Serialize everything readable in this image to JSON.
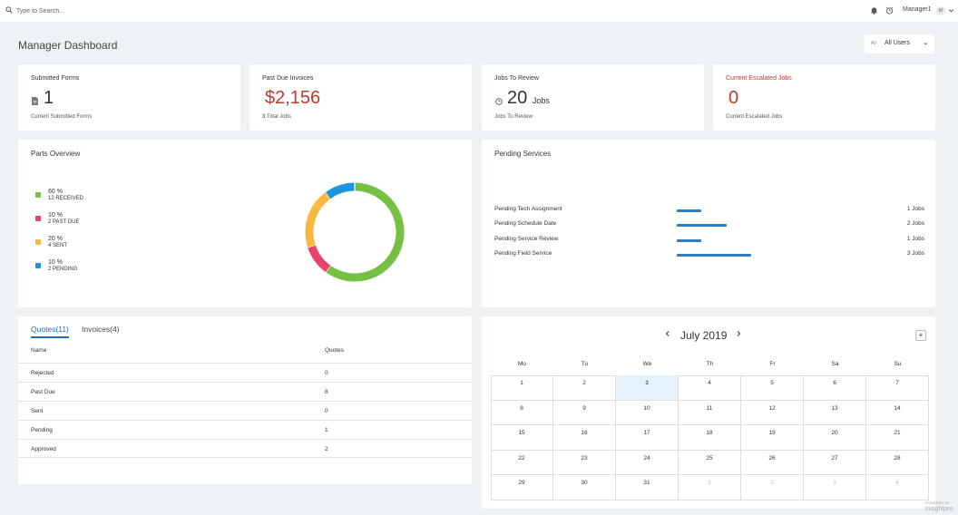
{
  "topbar": {
    "search_placeholder": "Type to Search...",
    "user_name": "Manager1",
    "avatar_initial": "M"
  },
  "page": {
    "title": "Manager Dashboard",
    "user_filter": {
      "badge": "AV",
      "value": "All Users"
    }
  },
  "stats": [
    {
      "title": "Submitted Forms",
      "value": "1",
      "unit": "",
      "subtitle": "Current Submitted Forms",
      "value_color": "#333333"
    },
    {
      "title": "Past Due Invoices",
      "value": "$2,156",
      "unit": "",
      "subtitle_count": "3",
      "subtitle": "Total Jobs",
      "value_color": "#c0392b"
    },
    {
      "title": "Jobs To Review",
      "value": "20",
      "unit": "Jobs",
      "subtitle": "Jobs To Review",
      "value_color": "#333333"
    },
    {
      "title": "Current Escalated Jobs",
      "value": "0",
      "unit": "",
      "subtitle": "Current Escalated Jobs",
      "value_color": "#c0392b",
      "title_color": "#c0392b"
    }
  ],
  "parts_overview": {
    "title": "Parts Overview",
    "legend": [
      {
        "pct": "60 %",
        "label": "12 RECEIVED",
        "color": "#76c043",
        "value": 60
      },
      {
        "pct": "10 %",
        "label": "2 PAST DUE",
        "color": "#e8446a",
        "value": 10
      },
      {
        "pct": "20 %",
        "label": "4 SENT",
        "color": "#f8b940",
        "value": 20
      },
      {
        "pct": "10 %",
        "label": "2 PENDING",
        "color": "#1e94e0",
        "value": 10
      }
    ]
  },
  "pending_services": {
    "title": "Pending Services",
    "max": 3,
    "rows": [
      {
        "label": "Pending Tech Assignment",
        "count": "1 Jobs",
        "value": 1
      },
      {
        "label": "Pending Schedule Date",
        "count": "2 Jobs",
        "value": 2
      },
      {
        "label": "Pending Service Review",
        "count": "1 Jobs",
        "value": 1
      },
      {
        "label": "Pending Field Service",
        "count": "3 Jobs",
        "value": 3
      }
    ]
  },
  "quotes": {
    "tabs": [
      {
        "label": "Quotes(11)"
      },
      {
        "label": "Invoices(4)"
      }
    ],
    "headers": {
      "name": "Name",
      "quotes": "Quotes"
    },
    "rows": [
      {
        "name": "Rejected",
        "quotes": "0"
      },
      {
        "name": "Past Due",
        "quotes": "8"
      },
      {
        "name": "Sent",
        "quotes": "0"
      },
      {
        "name": "Pending",
        "quotes": "1"
      },
      {
        "name": "Approved",
        "quotes": "2"
      }
    ]
  },
  "calendar": {
    "title": "July 2019",
    "add_label": "+",
    "days_of_week": [
      "Mo",
      "Tu",
      "We",
      "Th",
      "Fr",
      "Sa",
      "Su"
    ],
    "weeks": [
      [
        "1",
        "2",
        "3",
        "4",
        "5",
        "6",
        "7"
      ],
      [
        "8",
        "9",
        "10",
        "11",
        "12",
        "13",
        "14"
      ],
      [
        "15",
        "16",
        "17",
        "18",
        "19",
        "20",
        "21"
      ],
      [
        "22",
        "23",
        "24",
        "25",
        "26",
        "27",
        "28"
      ],
      [
        "29",
        "30",
        "31",
        "1",
        "2",
        "3",
        "4"
      ]
    ],
    "today": "3",
    "other_month_from_week5_col": 3
  },
  "footer": {
    "powered_by": "POWERED BY",
    "brand": "insightpro"
  }
}
